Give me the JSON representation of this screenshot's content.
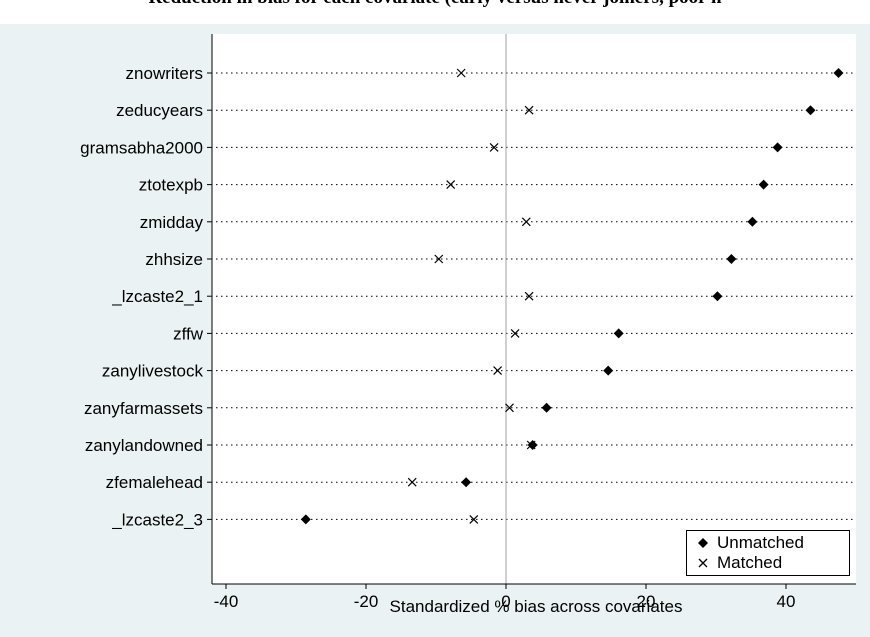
{
  "chart_data": {
    "type": "scatter",
    "title": "Reduction in bias for each covariate (early versus never joiners, poor h",
    "xlabel": "Standardized % bias across covariates",
    "ylabel": "",
    "xlim": [
      -42,
      50
    ],
    "xticks": [
      -40,
      -20,
      0,
      20,
      40
    ],
    "grid": "dotted horizontal lines at each covariate",
    "legend_position": "bottom-right",
    "categories": [
      "znowriters",
      "zeducyears",
      "gramsabha2000",
      "ztotexpb",
      "zmidday",
      "zhhsize",
      "_lzcaste2_1",
      "zffw",
      "zanylivestock",
      "zanyfarmassets",
      "zanylandowned",
      "zfemalehead",
      "_lzcaste2_3"
    ],
    "series": [
      {
        "name": "Unmatched",
        "marker": "diamond",
        "values": [
          47.5,
          43.5,
          38.8,
          36.8,
          35.2,
          32.2,
          30.2,
          16.1,
          14.6,
          5.8,
          3.8,
          -5.7,
          -28.6
        ]
      },
      {
        "name": "Matched",
        "marker": "x",
        "values": [
          -6.4,
          3.3,
          -1.7,
          -7.9,
          2.9,
          -9.6,
          3.3,
          1.3,
          -1.2,
          0.5,
          3.6,
          -13.4,
          -4.6
        ]
      }
    ],
    "colors": {
      "figure_bg": "#eaf2f3",
      "plot_bg": "#ffffff",
      "marker": "#000000",
      "zero_line": "#a0a0a0"
    }
  }
}
